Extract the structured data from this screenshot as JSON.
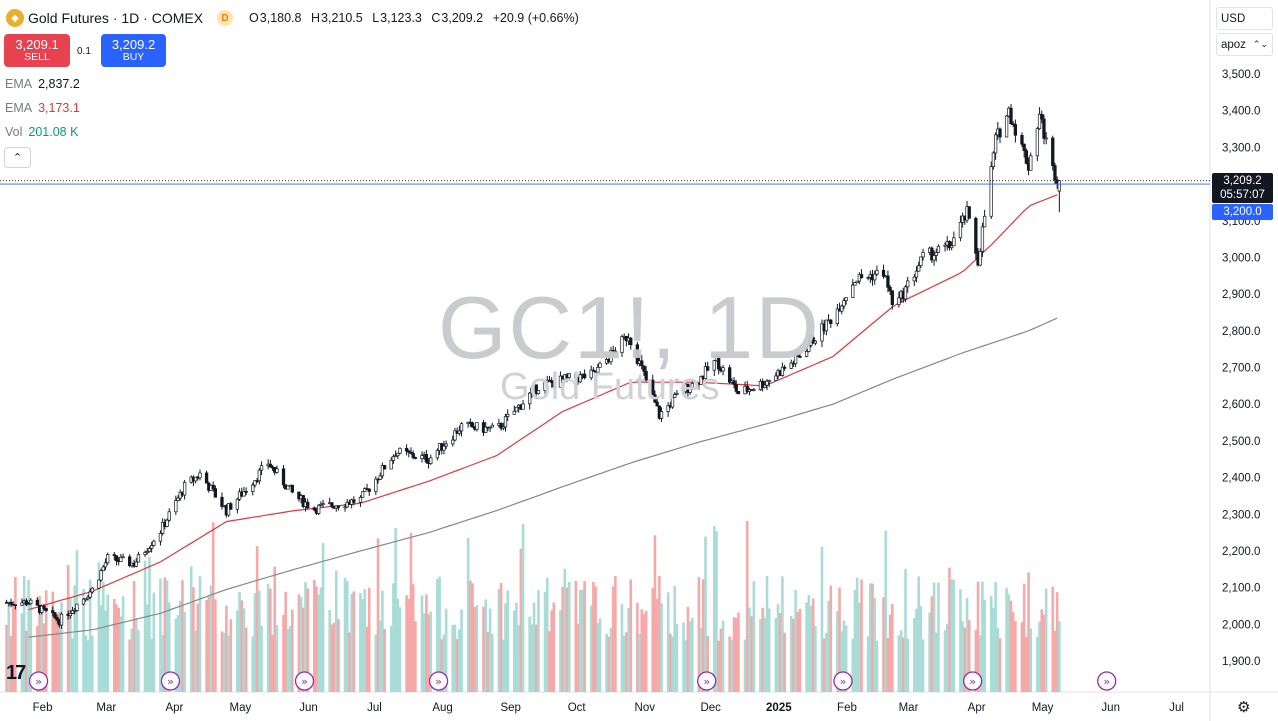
{
  "header": {
    "symbol_title": "Gold Futures · 1D · COMEX",
    "badge": "D",
    "open_label": "O",
    "open": "3,180.8",
    "high_label": "H",
    "high": "3,210.5",
    "low_label": "L",
    "low": "3,123.3",
    "close_label": "C",
    "close": "3,209.2",
    "change": "+20.9 (+0.66%)"
  },
  "trade": {
    "sell_price": "3,209.1",
    "sell_label": "SELL",
    "spread": "0.1",
    "buy_price": "3,209.2",
    "buy_label": "BUY"
  },
  "indicators": [
    {
      "name": "EMA",
      "value": "2,837.2",
      "color": "#131722"
    },
    {
      "name": "EMA",
      "value": "3,173.1",
      "color": "#e0383e"
    },
    {
      "name": "Vol",
      "value": "201.08 K",
      "color": "#089981"
    }
  ],
  "watermark": {
    "symbol": "GC1!, 1D",
    "description": "Gold Futures"
  },
  "controls": {
    "currency": "USD",
    "unit": "apoz"
  },
  "price_labels": {
    "last_price": "3,209.2",
    "countdown": "05:57:07",
    "marker": "3,200.0"
  },
  "colors": {
    "up": "#131722",
    "down": "#131722",
    "ema_fast": "#e0383e",
    "ema_slow": "#888888",
    "vol_up": "#a9dcd7",
    "vol_down": "#f5a9a9",
    "last_price_bg": "#131722",
    "marker_bg": "#2962ff",
    "event_icon": "#9c27b0"
  },
  "chart_data": {
    "type": "candlestick",
    "ylim": [
      1860,
      3560
    ],
    "y_ticks": [
      "3,500.0",
      "3,400.0",
      "3,300.0",
      "3,100.0",
      "3,000.0",
      "2,900.0",
      "2,800.0",
      "2,700.0",
      "2,600.0",
      "2,500.0",
      "2,400.0",
      "2,300.0",
      "2,200.0",
      "2,100.0",
      "2,000.0",
      "1,900.0"
    ],
    "x_ticks": [
      "Feb",
      "Mar",
      "Apr",
      "May",
      "Jun",
      "Jul",
      "Aug",
      "Sep",
      "Oct",
      "Nov",
      "Dec",
      "2025",
      "Feb",
      "Mar",
      "Apr",
      "May",
      "Jun",
      "Jul"
    ],
    "close_path": [
      [
        "2024-02-01",
        2060
      ],
      [
        "2024-02-15",
        2010
      ],
      [
        "2024-03-01",
        2095
      ],
      [
        "2024-03-08",
        2180
      ],
      [
        "2024-03-20",
        2165
      ],
      [
        "2024-04-01",
        2255
      ],
      [
        "2024-04-12",
        2375
      ],
      [
        "2024-04-19",
        2410
      ],
      [
        "2024-05-01",
        2310
      ],
      [
        "2024-05-10",
        2370
      ],
      [
        "2024-05-20",
        2440
      ],
      [
        "2024-06-01",
        2350
      ],
      [
        "2024-06-10",
        2315
      ],
      [
        "2024-07-01",
        2340
      ],
      [
        "2024-07-17",
        2470
      ],
      [
        "2024-08-01",
        2450
      ],
      [
        "2024-08-16",
        2540
      ],
      [
        "2024-09-01",
        2530
      ],
      [
        "2024-09-20",
        2650
      ],
      [
        "2024-10-01",
        2665
      ],
      [
        "2024-10-15",
        2680
      ],
      [
        "2024-10-31",
        2790
      ],
      [
        "2024-11-07",
        2680
      ],
      [
        "2024-11-14",
        2570
      ],
      [
        "2024-11-25",
        2640
      ],
      [
        "2024-12-01",
        2660
      ],
      [
        "2024-12-10",
        2720
      ],
      [
        "2024-12-20",
        2630
      ],
      [
        "2025-01-01",
        2660
      ],
      [
        "2025-01-15",
        2720
      ],
      [
        "2025-02-01",
        2840
      ],
      [
        "2025-02-11",
        2940
      ],
      [
        "2025-02-24",
        2960
      ],
      [
        "2025-03-01",
        2860
      ],
      [
        "2025-03-14",
        3000
      ],
      [
        "2025-03-26",
        3030
      ],
      [
        "2025-04-03",
        3120
      ],
      [
        "2025-04-08",
        2990
      ],
      [
        "2025-04-16",
        3320
      ],
      [
        "2025-04-22",
        3400
      ],
      [
        "2025-05-01",
        3250
      ],
      [
        "2025-05-06",
        3390
      ],
      [
        "2025-05-12",
        3240
      ],
      [
        "2025-05-15",
        3209.2
      ]
    ],
    "ema_fast_path": [
      [
        "2024-02-01",
        2040
      ],
      [
        "2024-03-01",
        2090
      ],
      [
        "2024-04-01",
        2170
      ],
      [
        "2024-05-01",
        2280
      ],
      [
        "2024-06-01",
        2310
      ],
      [
        "2024-07-01",
        2330
      ],
      [
        "2024-08-01",
        2390
      ],
      [
        "2024-09-01",
        2460
      ],
      [
        "2024-10-01",
        2580
      ],
      [
        "2024-11-01",
        2660
      ],
      [
        "2024-12-01",
        2660
      ],
      [
        "2025-01-01",
        2650
      ],
      [
        "2025-02-01",
        2730
      ],
      [
        "2025-03-01",
        2870
      ],
      [
        "2025-04-01",
        2960
      ],
      [
        "2025-04-15",
        3040
      ],
      [
        "2025-05-01",
        3140
      ],
      [
        "2025-05-15",
        3173.1
      ]
    ],
    "ema_slow_path": [
      [
        "2024-02-01",
        1965
      ],
      [
        "2024-03-01",
        1985
      ],
      [
        "2024-04-01",
        2030
      ],
      [
        "2024-05-01",
        2095
      ],
      [
        "2024-06-01",
        2150
      ],
      [
        "2024-07-01",
        2200
      ],
      [
        "2024-08-01",
        2250
      ],
      [
        "2024-09-01",
        2310
      ],
      [
        "2024-10-01",
        2375
      ],
      [
        "2024-11-01",
        2440
      ],
      [
        "2024-12-01",
        2495
      ],
      [
        "2025-01-01",
        2545
      ],
      [
        "2025-02-01",
        2600
      ],
      [
        "2025-03-01",
        2670
      ],
      [
        "2025-04-01",
        2740
      ],
      [
        "2025-05-01",
        2800
      ],
      [
        "2025-05-15",
        2837.2
      ]
    ],
    "volume_max_note": "relative volume, last 201.08 K",
    "event_markers": [
      "2024-02-01",
      "2024-04-01",
      "2024-06-01",
      "2024-08-01",
      "2024-12-01",
      "2025-02-01",
      "2025-04-01",
      "2025-06-01"
    ]
  }
}
